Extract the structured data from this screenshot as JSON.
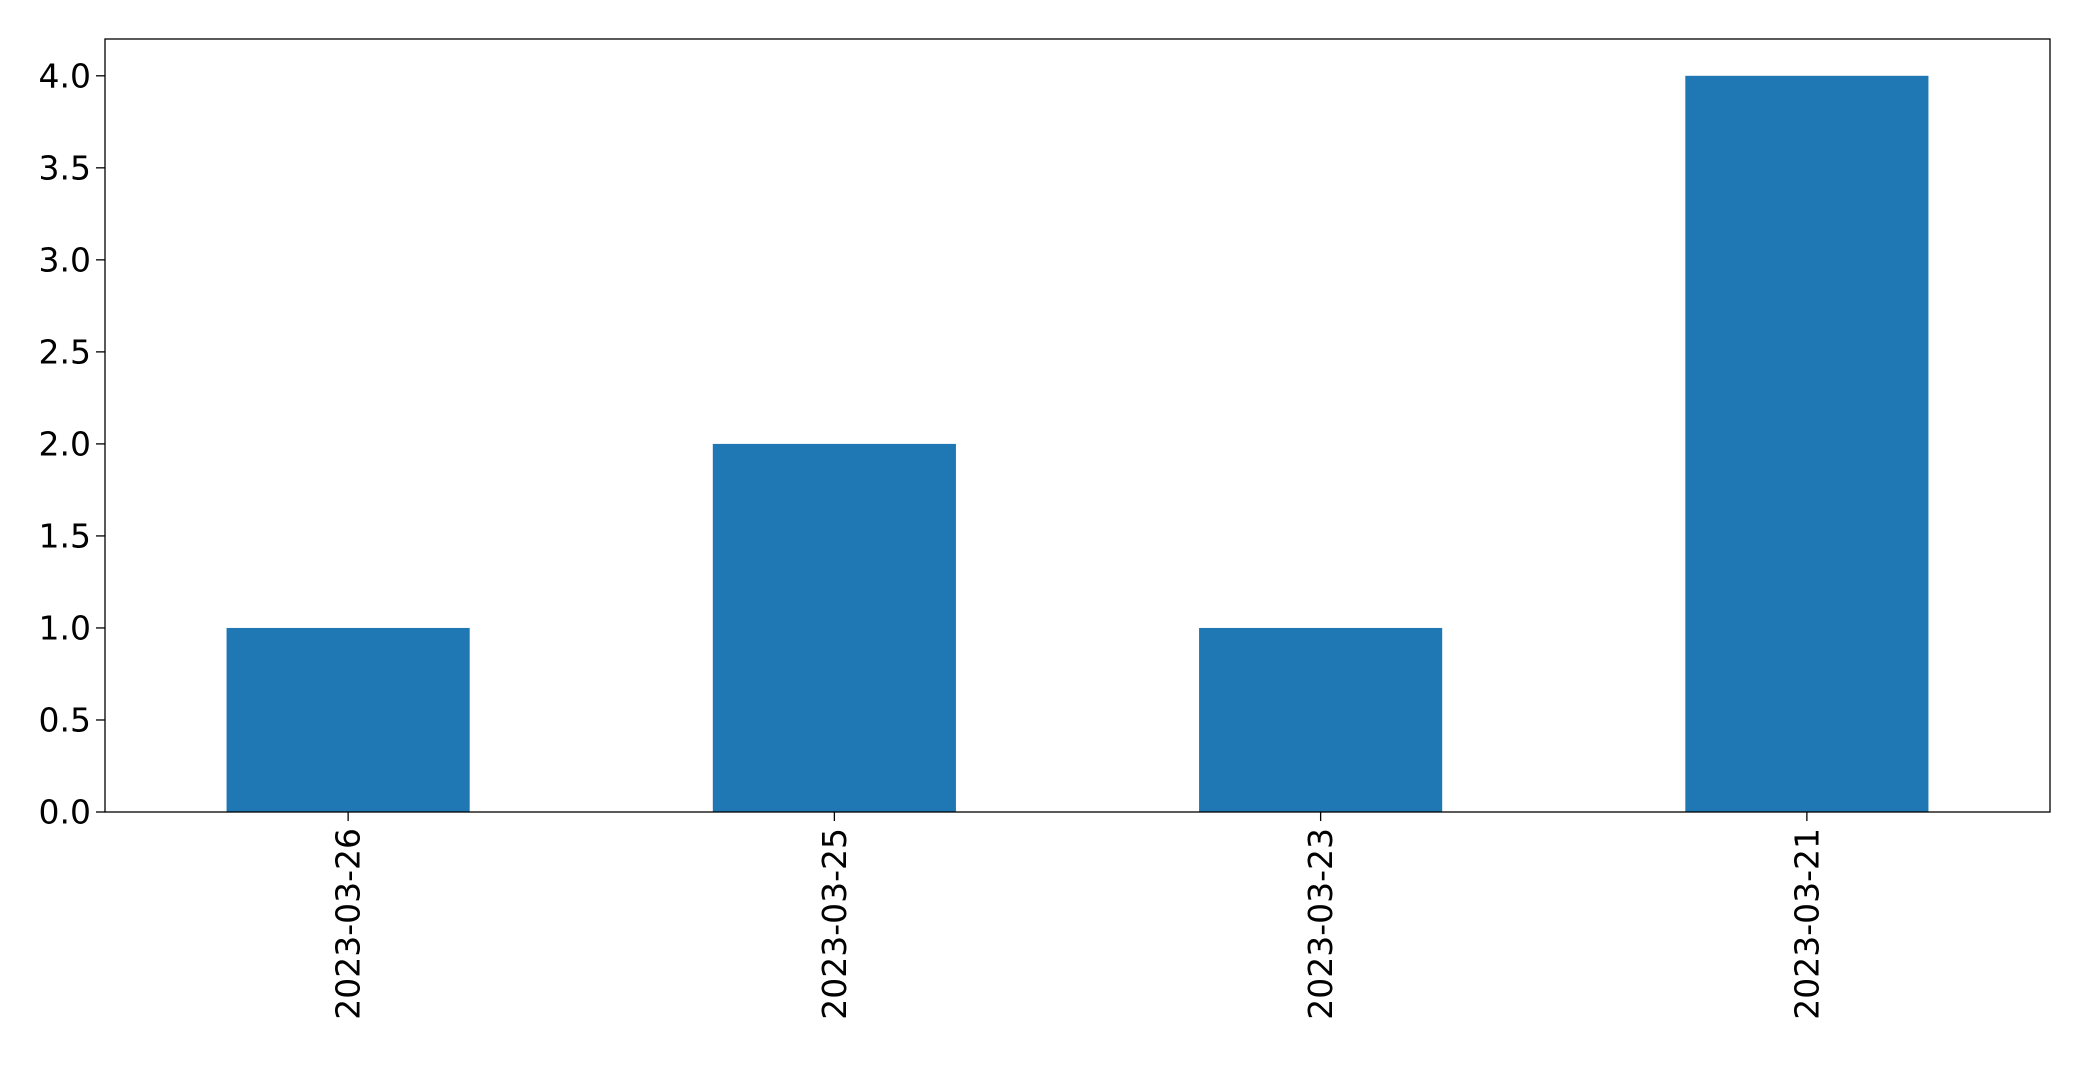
{
  "chart_data": {
    "type": "bar",
    "categories": [
      "2023-03-26",
      "2023-03-25",
      "2023-03-23",
      "2023-03-21"
    ],
    "values": [
      1,
      2,
      1,
      4
    ],
    "title": "",
    "xlabel": "",
    "ylabel": "",
    "ylim": [
      0,
      4.2
    ],
    "yticks": [
      0.0,
      0.5,
      1.0,
      1.5,
      2.0,
      2.5,
      3.0,
      3.5,
      4.0
    ],
    "ytick_labels": [
      "0.0",
      "0.5",
      "1.0",
      "1.5",
      "2.0",
      "2.5",
      "3.0",
      "3.5",
      "4.0"
    ],
    "grid": false,
    "legend": "none",
    "colors": {
      "bar": "#1f77b4",
      "axis": "#000000",
      "background": "#ffffff"
    }
  }
}
